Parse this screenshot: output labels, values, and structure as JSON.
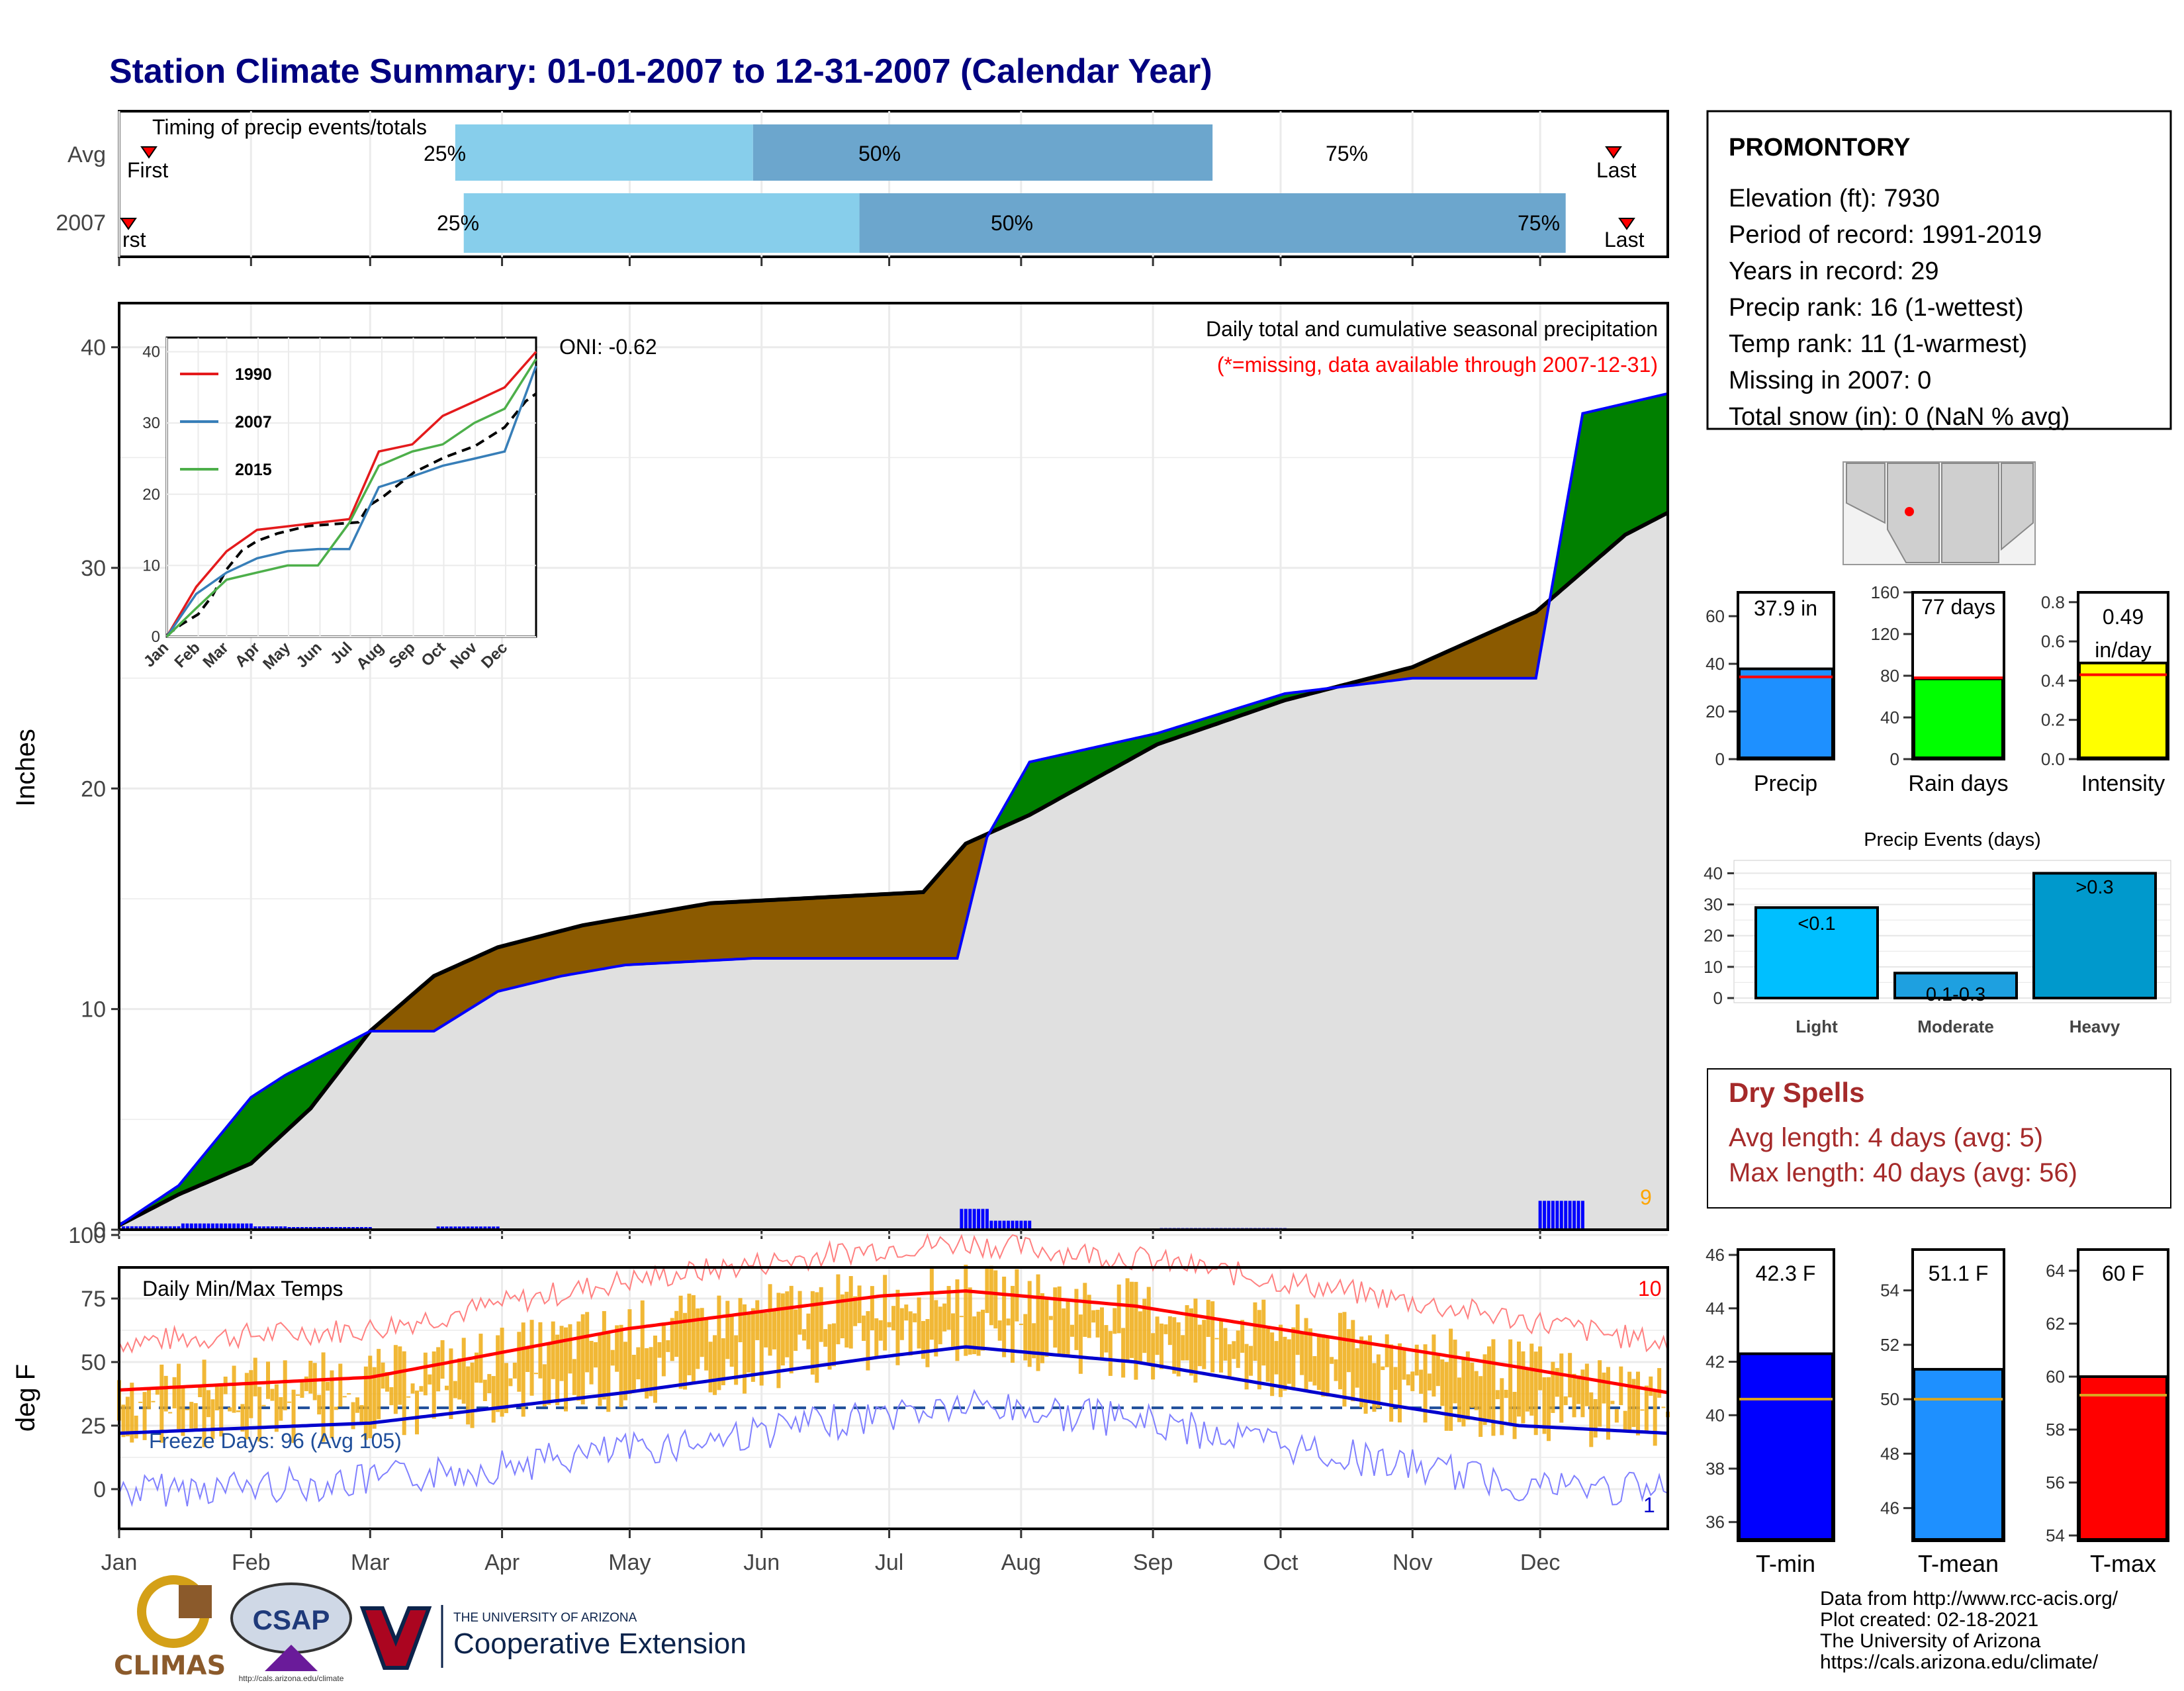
{
  "title": "Station Climate Summary: 01-01-2007 to 12-31-2007 (Calendar Year)",
  "colors": {
    "title": "#000080",
    "q1": "#87ceeb",
    "q2": "#6ca6cd",
    "surplus": "#008000",
    "deficit": "#8b5a00",
    "normal_fill": "#e0e0e0",
    "obs_line": "#0000ff",
    "tmax": "#ff0000",
    "tmin": "#0000cd",
    "range": "#f0b020",
    "dry": "#a52a2a"
  },
  "timing": {
    "title": "Timing of precip events/totals",
    "rows": [
      {
        "label": "Avg",
        "first_label": "First",
        "last_label": "Last",
        "p25_label": "25%",
        "p50_label": "50%",
        "p75_label": "75%"
      },
      {
        "label": "2007",
        "first_label": "rst",
        "last_label": "Last",
        "p25_label": "25%",
        "p50_label": "50%",
        "p75_label": "75%"
      }
    ]
  },
  "station": {
    "name": "PROMONTORY",
    "lines": [
      "Elevation (ft): 7930",
      "Period of record: 1991-2019",
      "Years in record: 29",
      "Precip rank: 16 (1-wettest)",
      "Temp rank: 11 (1-warmest)",
      "Missing in 2007: 0",
      "Total snow (in): 0 (NaN % avg)"
    ]
  },
  "precip_panel": {
    "ylabel": "Inches",
    "note1": "Daily total and cumulative seasonal precipitation",
    "note2": "(*=missing, data available through 2007-12-31)",
    "oni": "ONI: -0.62",
    "corner_count": "9"
  },
  "inset": {
    "legend": [
      "1990",
      "2007",
      "2015"
    ],
    "ytick_labels": [
      "0",
      "10",
      "20",
      "30",
      "40"
    ],
    "xtick_labels": [
      "Jan",
      "Feb",
      "Mar",
      "Apr",
      "May",
      "Jun",
      "Jul",
      "Aug",
      "Sep",
      "Oct",
      "Nov",
      "Dec"
    ]
  },
  "temp_panel": {
    "ylabel": "deg F",
    "title": "Daily Min/Max Temps",
    "freeze": "Freeze Days: 96 (Avg 105)",
    "corner_top": "10",
    "corner_bottom": "1",
    "ytick_labels": [
      "0",
      "25",
      "50",
      "75",
      "100"
    ]
  },
  "month_labels": [
    "Jan",
    "Feb",
    "Mar",
    "Apr",
    "May",
    "Jun",
    "Jul",
    "Aug",
    "Sep",
    "Oct",
    "Nov",
    "Dec"
  ],
  "precip_ytick_labels": [
    "0",
    "10",
    "20",
    "30",
    "40"
  ],
  "stats": {
    "bars": [
      {
        "label": "Precip",
        "value_label": "37.9 in",
        "ticks": [
          "0",
          "20",
          "40",
          "60"
        ]
      },
      {
        "label": "Rain days",
        "value_label": "77 days",
        "ticks": [
          "0",
          "40",
          "80",
          "120",
          "160"
        ]
      },
      {
        "label": "Intensity",
        "value_label": "0.49",
        "value_label2": "in/day",
        "ticks": [
          "0.0",
          "0.2",
          "0.4",
          "0.6",
          "0.8"
        ]
      }
    ]
  },
  "events": {
    "title": "Precip Events (days)",
    "bars": [
      {
        "label": "Light",
        "value_label": "<0.1"
      },
      {
        "label": "Moderate",
        "value_label": "0.1-0.3"
      },
      {
        "label": "Heavy",
        "value_label": ">0.3"
      }
    ],
    "ticks": [
      "0",
      "10",
      "20",
      "30",
      "40"
    ]
  },
  "dry_spells": {
    "title": "Dry Spells",
    "line1": "Avg length: 4 days (avg: 5)",
    "line2": "Max length: 40 days (avg: 56)"
  },
  "temps": {
    "bars": [
      {
        "label": "T-min",
        "value_label": "42.3 F",
        "ticks": [
          "36",
          "38",
          "40",
          "42",
          "44",
          "46"
        ]
      },
      {
        "label": "T-mean",
        "value_label": "51.1 F",
        "ticks": [
          "46",
          "48",
          "50",
          "52",
          "54"
        ]
      },
      {
        "label": "T-max",
        "value_label": "60 F",
        "ticks": [
          "54",
          "56",
          "58",
          "60",
          "62",
          "64"
        ]
      }
    ]
  },
  "footer": {
    "lines": [
      "Data from http://www.rcc-acis.org/",
      "Plot created: 02-18-2021",
      "The University of Arizona",
      "https://cals.arizona.edu/climate/"
    ]
  },
  "logos": {
    "climas": "CLIMAS",
    "csap": "CSAP",
    "csap_url": "http://cals.arizona.edu/climate",
    "ua_small": "THE UNIVERSITY OF ARIZONA",
    "ua_big": "Cooperative Extension"
  },
  "chart_data": [
    {
      "type": "area",
      "title": "Daily total and cumulative seasonal precipitation",
      "ylabel": "Inches",
      "ylim": [
        0,
        42
      ],
      "x_unit": "day of year",
      "series": [
        {
          "name": "2007",
          "x": [
            1,
            15,
            32,
            40,
            60,
            75,
            90,
            105,
            120,
            150,
            182,
            198,
            205,
            215,
            245,
            275,
            305,
            334,
            345,
            365
          ],
          "values": [
            0.2,
            2.0,
            6.0,
            7.0,
            9.0,
            9.0,
            10.8,
            11.5,
            12.0,
            12.3,
            12.3,
            12.3,
            17.8,
            21.2,
            22.5,
            24.3,
            25.0,
            25.0,
            37.0,
            37.9
          ]
        },
        {
          "normal_x": [
            1,
            15,
            32,
            46,
            60,
            75,
            90,
            110,
            140,
            170,
            190,
            200,
            215,
            245,
            275,
            305,
            334,
            355,
            365
          ],
          "normal_values": [
            0.2,
            1.6,
            3.0,
            5.5,
            9.0,
            11.5,
            12.8,
            13.8,
            14.8,
            15.1,
            15.3,
            17.5,
            18.8,
            22.0,
            24.0,
            25.5,
            28.0,
            31.5,
            32.5
          ]
        }
      ]
    },
    {
      "type": "line",
      "title": "Daily Min/Max Temps",
      "ylabel": "deg F",
      "ylim": [
        -15,
        105
      ],
      "x_unit": "day of year",
      "series": [
        {
          "name": "normal max",
          "x": [
            1,
            60,
            120,
            180,
            200,
            240,
            300,
            330,
            365
          ],
          "values": [
            39,
            44,
            63,
            76,
            78,
            72,
            56,
            48,
            38
          ]
        },
        {
          "name": "normal min",
          "x": [
            1,
            60,
            120,
            180,
            200,
            240,
            300,
            330,
            365
          ],
          "values": [
            22,
            26,
            38,
            52,
            56,
            50,
            33,
            25,
            22
          ]
        }
      ]
    },
    {
      "type": "bar",
      "title": "Precip Events (days)",
      "categories": [
        "Light",
        "Moderate",
        "Heavy"
      ],
      "values": [
        29,
        8,
        40
      ],
      "ylim": [
        0,
        42
      ]
    },
    {
      "type": "bar",
      "categories": [
        "Precip",
        "Rain days",
        "Intensity"
      ],
      "values": [
        37.9,
        77,
        0.49
      ],
      "averages": [
        34.5,
        78,
        0.43
      ]
    },
    {
      "type": "bar",
      "categories": [
        "T-min",
        "T-mean",
        "T-max"
      ],
      "values": [
        42.3,
        51.1,
        60
      ],
      "averages": [
        40.6,
        50.0,
        59.3
      ]
    },
    {
      "type": "line",
      "series": [
        {
          "name": "1990",
          "x": [
            1,
            30,
            60,
            90,
            120,
            150,
            181,
            210,
            243,
            273,
            304,
            334,
            365
          ],
          "values": [
            0,
            7,
            12,
            15,
            15.5,
            16,
            16.5,
            26,
            27,
            31,
            33,
            35,
            40
          ]
        },
        {
          "name": "2007",
          "x": [
            1,
            30,
            60,
            90,
            120,
            150,
            181,
            210,
            243,
            273,
            304,
            334,
            365
          ],
          "values": [
            0,
            6,
            9,
            11,
            12,
            12.3,
            12.3,
            21,
            22.5,
            24,
            25,
            26,
            38
          ]
        },
        {
          "name": "2015",
          "x": [
            1,
            30,
            60,
            90,
            120,
            150,
            181,
            210,
            243,
            273,
            304,
            334,
            365
          ],
          "values": [
            0,
            4,
            8,
            9,
            10,
            10,
            16,
            24,
            26,
            27,
            30,
            32,
            39
          ]
        }
      ],
      "ylim": [
        0,
        40
      ]
    }
  ]
}
